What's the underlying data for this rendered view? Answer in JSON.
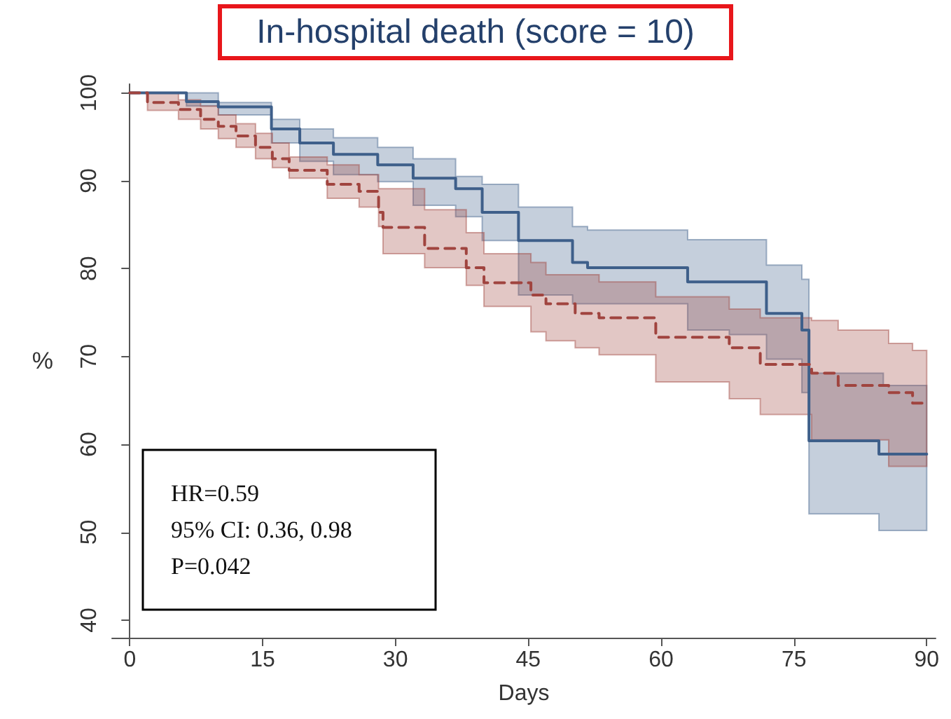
{
  "chart_data": {
    "type": "step",
    "title": "In-hospital death (score = 10)",
    "xlabel": "Days",
    "ylabel": "%",
    "xlim": [
      -2,
      91
    ],
    "xticks": [
      0,
      15,
      30,
      45,
      60,
      75,
      90
    ],
    "ylim": [
      38,
      101
    ],
    "yticks": [
      40,
      50,
      60,
      70,
      80,
      90,
      100
    ],
    "grid": false,
    "marker": "none",
    "annotations": [
      "HR=0.59",
      "95% CI: 0.36, 0.98",
      "P=0.042"
    ],
    "series": [
      {
        "color": "#3e5f8a",
        "line_style": "solid",
        "x": [
          0,
          6.4,
          10,
          16,
          19.2,
          23,
          28,
          32,
          36.8,
          39.8,
          43.9,
          50,
          51.7,
          63,
          67.7,
          71.9,
          75.9,
          76.7,
          84.6,
          85.1,
          90
        ],
        "values": [
          100,
          99.0,
          98.4,
          95.9,
          94.3,
          93.0,
          91.8,
          90.3,
          89.1,
          86.4,
          83.2,
          80.7,
          80.1,
          78.5,
          78.5,
          74.9,
          73.0,
          60.4,
          58.9,
          58.9,
          58.9
        ],
        "lower": [
          100,
          98.5,
          97.5,
          94.3,
          92.2,
          90.7,
          89.9,
          87.2,
          85.9,
          83.2,
          77.0,
          76.0,
          76.0,
          73.0,
          72.5,
          69.7,
          65.9,
          52.1,
          50.2,
          50.2,
          50.2
        ],
        "upper": [
          100,
          100,
          98.9,
          97.0,
          95.9,
          94.9,
          93.8,
          92.5,
          90.5,
          89.6,
          87.0,
          84.8,
          84.4,
          83.3,
          83.3,
          80.4,
          78.8,
          68.1,
          68.1,
          66.7,
          66.7
        ]
      },
      {
        "color": "#a0443f",
        "line_style": "dashed",
        "x": [
          0,
          2,
          5.5,
          8,
          10,
          12,
          14.2,
          16.1,
          18,
          22.3,
          25.9,
          28.1,
          28.6,
          33.3,
          38,
          40,
          45.3,
          47,
          50.3,
          53,
          59.4,
          67.7,
          71.2,
          77,
          80,
          85.7,
          88.4,
          90
        ],
        "values": [
          100,
          98.9,
          98.1,
          97.0,
          96.2,
          95.1,
          93.8,
          92.5,
          91.2,
          89.6,
          88.8,
          86.4,
          84.7,
          82.3,
          80.1,
          78.4,
          77.0,
          76.0,
          74.9,
          74.4,
          72.2,
          71.0,
          69.1,
          68.1,
          66.7,
          65.9,
          64.7,
          64.7
        ],
        "lower": [
          100,
          98.0,
          97.0,
          95.9,
          94.8,
          93.8,
          92.5,
          91.5,
          90.3,
          88.0,
          87.0,
          84.8,
          81.7,
          80.1,
          78.1,
          75.7,
          72.8,
          71.8,
          71.0,
          70.2,
          67.1,
          65.2,
          63.4,
          60.5,
          60.5,
          57.5,
          57.5,
          57.5
        ],
        "upper": [
          100,
          100,
          99.2,
          98.5,
          97.5,
          96.5,
          95.4,
          94.3,
          92.7,
          91.8,
          90.7,
          89.1,
          89.1,
          86.7,
          84.1,
          81.7,
          80.7,
          79.3,
          79.3,
          78.5,
          76.8,
          75.4,
          74.4,
          74.1,
          73.0,
          71.5,
          70.7,
          70.7
        ]
      }
    ]
  }
}
